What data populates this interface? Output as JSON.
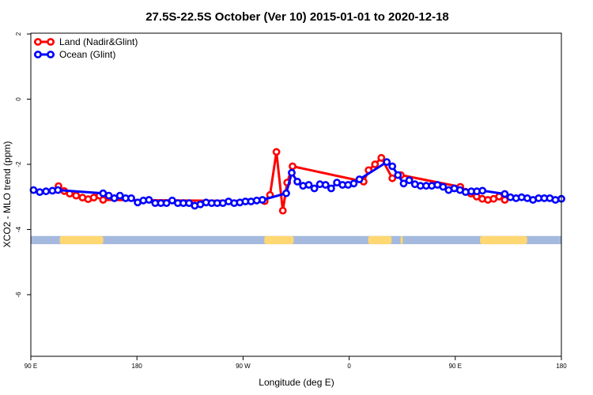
{
  "chart_data": {
    "type": "line",
    "title": "27.5S-22.5S October (Ver 10)   2015-01-01 to 2020-12-18",
    "xlabel": "Longitude (deg E)",
    "ylabel": "XCO2 - MLO trend (ppm)",
    "x_ticks": [
      {
        "value": 90,
        "label": "90 E"
      },
      {
        "value": 180,
        "label": "180"
      },
      {
        "value": 270,
        "label": "90 W"
      },
      {
        "value": 360,
        "label": "0"
      },
      {
        "value": 450,
        "label": "90 E"
      },
      {
        "value": 540,
        "label": "180"
      }
    ],
    "y_ticks": [
      2,
      0,
      -2,
      -4,
      -6
    ],
    "xlim": [
      90,
      540
    ],
    "ylim": [
      -8,
      2.1
    ],
    "grid": false,
    "legend_position": "top-left",
    "series": [
      {
        "name": "Land (Nadir&Glint)",
        "color": "#ff0000",
        "points": [
          [
            113.5,
            -2.67
          ],
          [
            118.3,
            -2.82
          ],
          [
            123.0,
            -2.9
          ],
          [
            128.4,
            -2.96
          ],
          [
            133.8,
            -3.02
          ],
          [
            138.6,
            -3.07
          ],
          [
            143.4,
            -3.02
          ],
          [
            148.2,
            -2.96
          ],
          [
            151.3,
            -3.09
          ],
          [
            288.4,
            -3.13
          ],
          [
            292.9,
            -2.94
          ],
          [
            298.3,
            -1.62
          ],
          [
            303.7,
            -3.42
          ],
          [
            307.4,
            -2.56
          ],
          [
            312.0,
            -2.06
          ],
          [
            372.3,
            -2.53
          ],
          [
            376.5,
            -2.18
          ],
          [
            381.9,
            -2.0
          ],
          [
            387.3,
            -1.8
          ],
          [
            396.6,
            -2.43
          ],
          [
            403.8,
            -2.33
          ],
          [
            454.3,
            -2.69
          ],
          [
            458.6,
            -2.84
          ],
          [
            463.3,
            -2.9
          ],
          [
            468.1,
            -2.99
          ],
          [
            472.9,
            -3.06
          ],
          [
            477.7,
            -3.09
          ],
          [
            482.5,
            -3.06
          ],
          [
            487.2,
            -2.99
          ],
          [
            492.0,
            -3.09
          ]
        ]
      },
      {
        "name": "Ocean (Glint)",
        "color": "#0000ff",
        "points": [
          [
            92.3,
            -2.79
          ],
          [
            97.6,
            -2.85
          ],
          [
            102.9,
            -2.83
          ],
          [
            108.3,
            -2.81
          ],
          [
            113.0,
            -2.79
          ],
          [
            151.3,
            -2.89
          ],
          [
            156.1,
            -2.96
          ],
          [
            160.8,
            -3.04
          ],
          [
            165.6,
            -2.96
          ],
          [
            170.4,
            -3.04
          ],
          [
            175.2,
            -3.04
          ],
          [
            180.6,
            -3.17
          ],
          [
            185.4,
            -3.11
          ],
          [
            190.2,
            -3.09
          ],
          [
            195.5,
            -3.19
          ],
          [
            200.3,
            -3.19
          ],
          [
            205.1,
            -3.19
          ],
          [
            209.9,
            -3.11
          ],
          [
            214.7,
            -3.19
          ],
          [
            219.4,
            -3.19
          ],
          [
            224.2,
            -3.19
          ],
          [
            229.0,
            -3.27
          ],
          [
            233.8,
            -3.23
          ],
          [
            238.6,
            -3.17
          ],
          [
            243.4,
            -3.19
          ],
          [
            248.1,
            -3.19
          ],
          [
            252.9,
            -3.19
          ],
          [
            257.7,
            -3.14
          ],
          [
            262.5,
            -3.19
          ],
          [
            267.3,
            -3.17
          ],
          [
            272.0,
            -3.14
          ],
          [
            276.8,
            -3.14
          ],
          [
            281.6,
            -3.11
          ],
          [
            286.4,
            -3.09
          ],
          [
            306.6,
            -2.89
          ],
          [
            311.3,
            -2.26
          ],
          [
            316.1,
            -2.53
          ],
          [
            320.9,
            -2.66
          ],
          [
            325.7,
            -2.63
          ],
          [
            330.5,
            -2.74
          ],
          [
            335.2,
            -2.61
          ],
          [
            340.0,
            -2.63
          ],
          [
            344.8,
            -2.74
          ],
          [
            349.6,
            -2.56
          ],
          [
            354.4,
            -2.63
          ],
          [
            359.1,
            -2.63
          ],
          [
            363.9,
            -2.59
          ],
          [
            368.7,
            -2.46
          ],
          [
            391.9,
            -1.93
          ],
          [
            396.6,
            -2.06
          ],
          [
            401.4,
            -2.33
          ],
          [
            406.2,
            -2.59
          ],
          [
            411.0,
            -2.49
          ],
          [
            415.8,
            -2.61
          ],
          [
            420.5,
            -2.66
          ],
          [
            425.3,
            -2.66
          ],
          [
            430.1,
            -2.66
          ],
          [
            434.9,
            -2.63
          ],
          [
            439.7,
            -2.69
          ],
          [
            444.4,
            -2.79
          ],
          [
            449.2,
            -2.74
          ],
          [
            454.0,
            -2.79
          ],
          [
            458.8,
            -2.85
          ],
          [
            463.6,
            -2.83
          ],
          [
            468.3,
            -2.83
          ],
          [
            473.1,
            -2.81
          ],
          [
            492.0,
            -2.91
          ],
          [
            496.8,
            -3.01
          ],
          [
            501.6,
            -3.04
          ],
          [
            506.3,
            -3.01
          ],
          [
            511.1,
            -3.04
          ],
          [
            515.9,
            -3.09
          ],
          [
            520.7,
            -3.04
          ],
          [
            525.5,
            -3.04
          ],
          [
            530.2,
            -3.04
          ],
          [
            535.0,
            -3.09
          ],
          [
            540.0,
            -3.06
          ]
        ]
      }
    ],
    "surface_band": {
      "y_range": [
        -4.45,
        -4.2
      ],
      "ocean_color": "#a4b9dd",
      "land_color": "#ffd773",
      "land_segments": [
        [
          114.5,
          151.5
        ],
        [
          288.0,
          313.0
        ],
        [
          376.0,
          396.0
        ],
        [
          403.5,
          405.5
        ],
        [
          471.0,
          511.0
        ]
      ]
    }
  }
}
